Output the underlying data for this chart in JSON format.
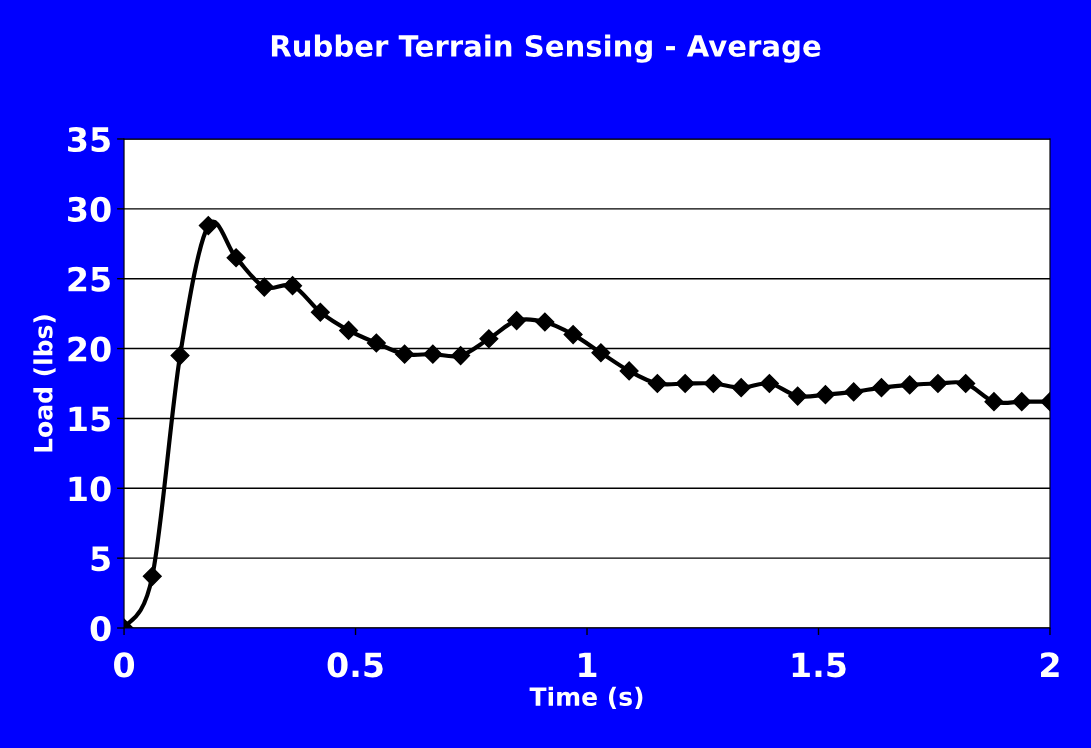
{
  "chart_data": {
    "type": "line",
    "title": "Rubber Terrain Sensing - Average",
    "xlabel": "Time (s)",
    "ylabel": "Load (lbs)",
    "series": [
      {
        "color": "#000000",
        "x": [
          0,
          0.061,
          0.121,
          0.182,
          0.242,
          0.303,
          0.364,
          0.424,
          0.485,
          0.545,
          0.606,
          0.667,
          0.727,
          0.788,
          0.848,
          0.909,
          0.97,
          1.03,
          1.091,
          1.152,
          1.212,
          1.273,
          1.333,
          1.394,
          1.455,
          1.515,
          1.576,
          1.636,
          1.697,
          1.758,
          1.818,
          1.879,
          1.939,
          2.0
        ],
        "values": [
          0,
          3.7,
          19.5,
          28.8,
          26.5,
          24.4,
          24.5,
          22.6,
          21.3,
          20.4,
          19.6,
          19.6,
          19.5,
          20.7,
          22.0,
          21.9,
          21.0,
          19.7,
          18.4,
          17.5,
          17.5,
          17.5,
          17.2,
          17.5,
          16.6,
          16.7,
          16.9,
          17.2,
          17.4,
          17.5,
          17.5,
          16.2,
          16.2,
          16.2
        ]
      }
    ],
    "xlim": [
      0,
      2
    ],
    "xticks": [
      0,
      0.5,
      1,
      1.5,
      2
    ],
    "ylim": [
      0,
      35
    ],
    "yticks": [
      0,
      5,
      10,
      15,
      20,
      25,
      30,
      35
    ],
    "grid": "y",
    "marker": "diamond",
    "line_style": "solid",
    "legend": false
  }
}
